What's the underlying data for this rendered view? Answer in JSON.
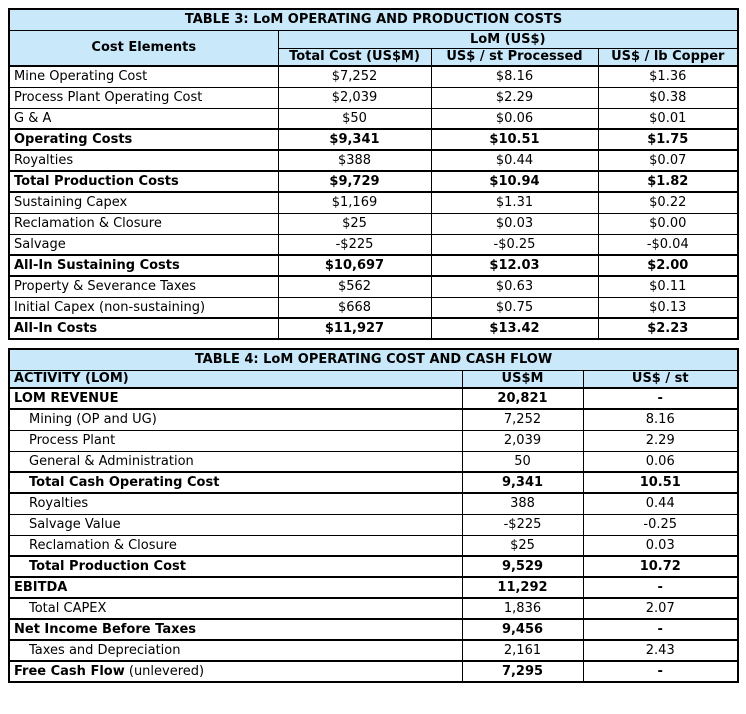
{
  "colors": {
    "header_bg": "#C9E9FB",
    "border": "#000000"
  },
  "table3": {
    "title": "TABLE 3: LoM OPERATING AND PRODUCTION COSTS",
    "col1_header": "Cost Elements",
    "group_header": "LoM (US$)",
    "sub_headers": [
      "Total Cost (US$M)",
      "US$ / st Processed",
      "US$ / lb Copper"
    ],
    "rows": [
      {
        "label": "Mine Operating Cost",
        "total_cost": "$7,252",
        "per_st": "$8.16",
        "per_lb": "$1.36",
        "bold": false
      },
      {
        "label": "Process Plant Operating Cost",
        "total_cost": "$2,039",
        "per_st": "$2.29",
        "per_lb": "$0.38",
        "bold": false
      },
      {
        "label": "G & A",
        "total_cost": "$50",
        "per_st": "$0.06",
        "per_lb": "$0.01",
        "bold": false
      },
      {
        "label": "Operating Costs",
        "total_cost": "$9,341",
        "per_st": "$10.51",
        "per_lb": "$1.75",
        "bold": true
      },
      {
        "label": "Royalties",
        "total_cost": "$388",
        "per_st": "$0.44",
        "per_lb": "$0.07",
        "bold": false
      },
      {
        "label": "Total Production Costs",
        "total_cost": "$9,729",
        "per_st": "$10.94",
        "per_lb": "$1.82",
        "bold": true
      },
      {
        "label": "Sustaining Capex",
        "total_cost": "$1,169",
        "per_st": "$1.31",
        "per_lb": "$0.22",
        "bold": false
      },
      {
        "label": "Reclamation & Closure",
        "total_cost": "$25",
        "per_st": "$0.03",
        "per_lb": "$0.00",
        "bold": false
      },
      {
        "label": "Salvage",
        "total_cost": "-$225",
        "per_st": "-$0.25",
        "per_lb": "-$0.04",
        "bold": false
      },
      {
        "label": "All-In Sustaining Costs",
        "total_cost": "$10,697",
        "per_st": "$12.03",
        "per_lb": "$2.00",
        "bold": true
      },
      {
        "label": "Property & Severance Taxes",
        "total_cost": "$562",
        "per_st": "$0.63",
        "per_lb": "$0.11",
        "bold": false
      },
      {
        "label": "Initial Capex (non-sustaining)",
        "total_cost": "$668",
        "per_st": "$0.75",
        "per_lb": "$0.13",
        "bold": false
      },
      {
        "label": "All-In Costs",
        "total_cost": "$11,927",
        "per_st": "$13.42",
        "per_lb": "$2.23",
        "bold": true
      }
    ]
  },
  "table4": {
    "title": "TABLE 4: LoM OPERATING COST AND CASH FLOW",
    "headers": [
      "ACTIVITY (LOM)",
      "US$M",
      "US$ / st"
    ],
    "rows": [
      {
        "label": "LOM REVENUE",
        "usm": "20,821",
        "per_st": "-",
        "bold": true,
        "indent": false
      },
      {
        "label": "Mining (OP and UG)",
        "usm": "7,252",
        "per_st": "8.16",
        "bold": false,
        "indent": true
      },
      {
        "label": "Process Plant",
        "usm": "2,039",
        "per_st": "2.29",
        "bold": false,
        "indent": true
      },
      {
        "label": "General & Administration",
        "usm": "50",
        "per_st": "0.06",
        "bold": false,
        "indent": true
      },
      {
        "label": "Total Cash Operating Cost",
        "usm": "9,341",
        "per_st": "10.51",
        "bold": true,
        "indent": true
      },
      {
        "label": "Royalties",
        "usm": "388",
        "per_st": "0.44",
        "bold": false,
        "indent": true
      },
      {
        "label": "Salvage Value",
        "usm": "-$225",
        "per_st": "-0.25",
        "bold": false,
        "indent": true
      },
      {
        "label": "Reclamation & Closure",
        "usm": "$25",
        "per_st": "0.03",
        "bold": false,
        "indent": true
      },
      {
        "label": "Total Production Cost",
        "usm": "9,529",
        "per_st": "10.72",
        "bold": true,
        "indent": true
      },
      {
        "label": "EBITDA",
        "usm": "11,292",
        "per_st": "-",
        "bold": true,
        "indent": false
      },
      {
        "label": "Total CAPEX",
        "usm": "1,836",
        "per_st": "2.07",
        "bold": false,
        "indent": true
      },
      {
        "label": "Net Income Before Taxes",
        "usm": "9,456",
        "per_st": "-",
        "bold": true,
        "indent": false
      },
      {
        "label": "Taxes and Depreciation",
        "usm": "2,161",
        "per_st": "2.43",
        "bold": false,
        "indent": true
      },
      {
        "label": "Free Cash Flow",
        "suffix": " (unlevered)",
        "usm": "7,295",
        "per_st": "-",
        "bold": true,
        "indent": false
      }
    ]
  }
}
